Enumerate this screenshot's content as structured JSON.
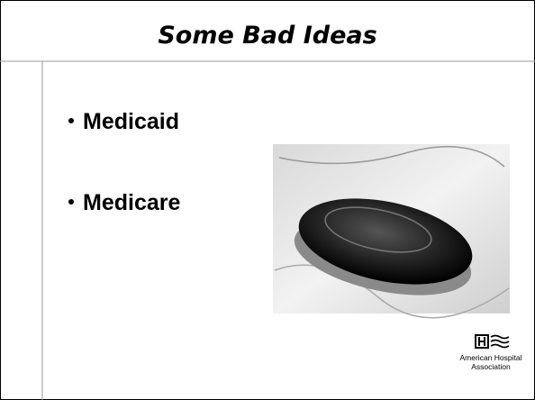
{
  "header": {
    "title": "Some Bad Ideas"
  },
  "bullets": [
    "Medicaid",
    "Medicare"
  ],
  "logo": {
    "lines": [
      "American Hospital",
      "Association"
    ]
  }
}
